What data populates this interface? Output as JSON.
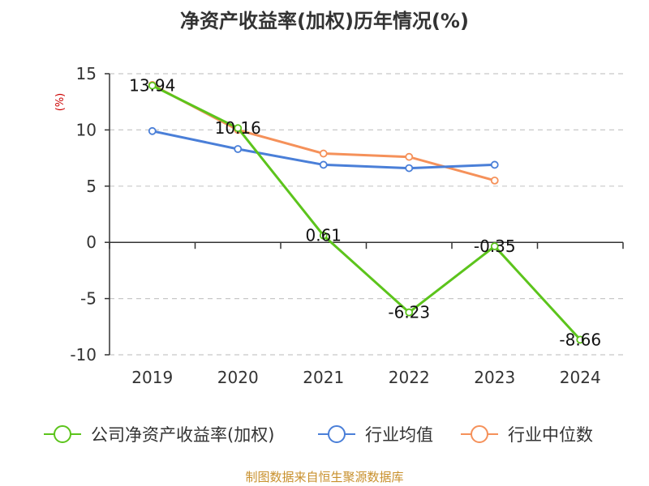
{
  "chart_data": {
    "type": "line",
    "title": "净资产收益率(加权)历年情况(%)",
    "ylabel": "(%)",
    "categories": [
      "2019",
      "2020",
      "2021",
      "2022",
      "2023",
      "2024"
    ],
    "ylim": [
      -10,
      15
    ],
    "yticks": [
      15,
      10,
      5,
      0,
      -5,
      -10
    ],
    "grid": true,
    "legend_position": "bottom",
    "series": [
      {
        "name": "公司净资产收益率(加权)",
        "color": "#5cc41c",
        "values": [
          13.94,
          10.16,
          0.61,
          -6.23,
          -0.35,
          -8.66
        ],
        "labels": [
          "13.94",
          "10.16",
          "0.61",
          "-6.23",
          "-0.35",
          "-8.66"
        ]
      },
      {
        "name": "行业均值",
        "color": "#4a7fd8",
        "values": [
          9.9,
          8.3,
          6.9,
          6.6,
          6.9,
          null
        ]
      },
      {
        "name": "行业中位数",
        "color": "#f5915a",
        "values": [
          14.0,
          10.0,
          7.9,
          7.6,
          5.5,
          null
        ]
      }
    ]
  },
  "source": "制图数据来自恒生聚源数据库"
}
